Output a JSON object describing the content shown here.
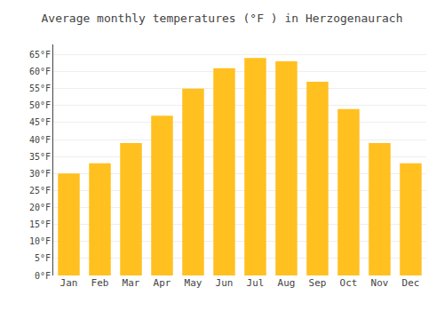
{
  "chart_data": {
    "type": "bar",
    "title": "Average monthly temperatures (°F ) in Herzogenaurach",
    "categories": [
      "Jan",
      "Feb",
      "Mar",
      "Apr",
      "May",
      "Jun",
      "Jul",
      "Aug",
      "Sep",
      "Oct",
      "Nov",
      "Dec"
    ],
    "values": [
      30,
      33,
      39,
      47,
      55,
      61,
      64,
      63,
      57,
      49,
      39,
      33
    ],
    "color": "#FFC020",
    "ylim": [
      0,
      68
    ],
    "yticks": [
      {
        "value": 0,
        "label": "0°F"
      },
      {
        "value": 5,
        "label": "5°F"
      },
      {
        "value": 10,
        "label": "10°F"
      },
      {
        "value": 15,
        "label": "15°F"
      },
      {
        "value": 20,
        "label": "20°F"
      },
      {
        "value": 25,
        "label": "25°F"
      },
      {
        "value": 30,
        "label": "30°F"
      },
      {
        "value": 35,
        "label": "35°F"
      },
      {
        "value": 40,
        "label": "40°F"
      },
      {
        "value": 45,
        "label": "45°F"
      },
      {
        "value": 50,
        "label": "50°F"
      },
      {
        "value": 55,
        "label": "55°F"
      },
      {
        "value": 60,
        "label": "60°F"
      },
      {
        "value": 65,
        "label": "65°F"
      }
    ],
    "grid": true
  }
}
